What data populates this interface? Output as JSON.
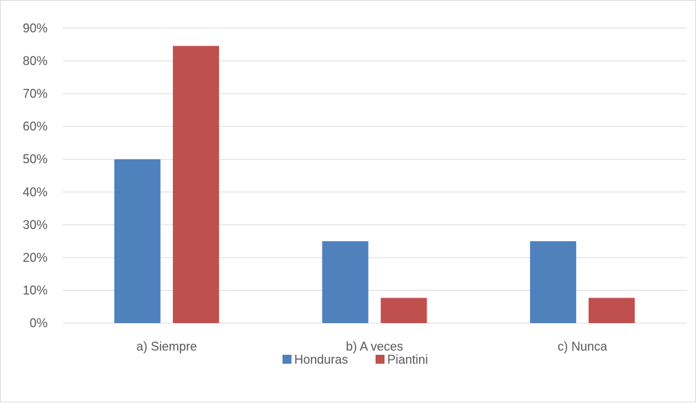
{
  "chart_data": {
    "type": "bar",
    "categories": [
      "a) Siempre",
      "b) A veces",
      "c) Nunca"
    ],
    "series": [
      {
        "name": "Honduras",
        "values": [
          50,
          25,
          25
        ],
        "color": "#4f81bd"
      },
      {
        "name": "Piantini",
        "values": [
          84.6,
          7.7,
          7.7
        ],
        "color": "#c0504d"
      }
    ],
    "ylim": [
      0,
      90
    ],
    "yticks": [
      "0%",
      "10%",
      "20%",
      "30%",
      "40%",
      "50%",
      "60%",
      "70%",
      "80%",
      "90%"
    ],
    "grid": true,
    "legend_position": "bottom"
  }
}
